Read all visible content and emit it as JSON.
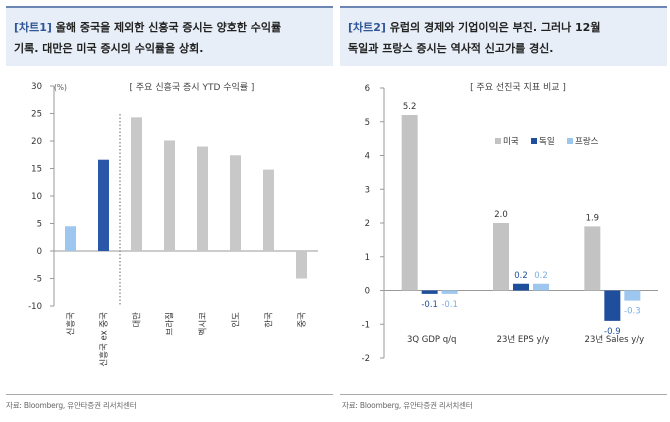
{
  "charts": [
    {
      "tag": "[차트1]",
      "header_line1": " 올해 중국을 제외한 신흥국 증시는 양호한 수익률",
      "header_line2": "기록. 대만은 미국 증시의 수익률을 상회.",
      "source": "자료: Bloomberg, 유안타증권 리서치센터"
    },
    {
      "tag": "[차트2]",
      "header_line1": " 유럽의 경제와 기업이익은 부진. 그러나 12월",
      "header_line2": "독일과 프랑스 증시는 역사적 신고가를 경신.",
      "source": "자료: Bloomberg, 유안타증권 리서치센터"
    }
  ],
  "chart_data": [
    {
      "type": "bar",
      "title": "[ 주요 신흥국 증시 YTD 수익률 ]",
      "ylabel": "(%)",
      "ylim": [
        -10,
        30
      ],
      "yticks": [
        -10,
        -5,
        0,
        5,
        10,
        15,
        20,
        25,
        30
      ],
      "categories": [
        "신흥국",
        "신흥국 ex 중국",
        "대만",
        "브라질",
        "멕시코",
        "인도",
        "한국",
        "중국"
      ],
      "values": [
        4.5,
        16.6,
        24.3,
        20.1,
        19.0,
        17.4,
        14.8,
        -5.0
      ],
      "colors": [
        "#9ec7f0",
        "#2b57a8",
        "#c8c8c8",
        "#c8c8c8",
        "#c8c8c8",
        "#c8c8c8",
        "#c8c8c8",
        "#c8c8c8"
      ],
      "divider_after_index": 1,
      "grid": false
    },
    {
      "type": "bar",
      "title": "[ 주요 선진국 지표 비교 ]",
      "ylim": [
        -2,
        6
      ],
      "yticks": [
        -2,
        -1,
        0,
        1,
        2,
        3,
        4,
        5,
        6
      ],
      "categories": [
        "3Q GDP q/q",
        "23년 EPS y/y",
        "23년 Sales y/y"
      ],
      "series": [
        {
          "name": "미국",
          "color": "#c3c3c3",
          "values": [
            5.2,
            2.0,
            1.9
          ],
          "labels": [
            "5.2",
            "2.0",
            "1.9"
          ],
          "label_color": "#333333"
        },
        {
          "name": "독일",
          "color": "#1f4e9c",
          "values": [
            -0.1,
            0.2,
            -0.9
          ],
          "labels": [
            "-0.1",
            "0.2",
            "-0.9"
          ],
          "label_color": "#1f4e9c"
        },
        {
          "name": "프랑스",
          "color": "#9ec7f0",
          "values": [
            -0.1,
            0.2,
            -0.3
          ],
          "labels": [
            "-0.1",
            "0.2",
            "-0.3"
          ],
          "label_color": "#7aaee3"
        }
      ],
      "legend": "top-right",
      "grid": false
    }
  ]
}
